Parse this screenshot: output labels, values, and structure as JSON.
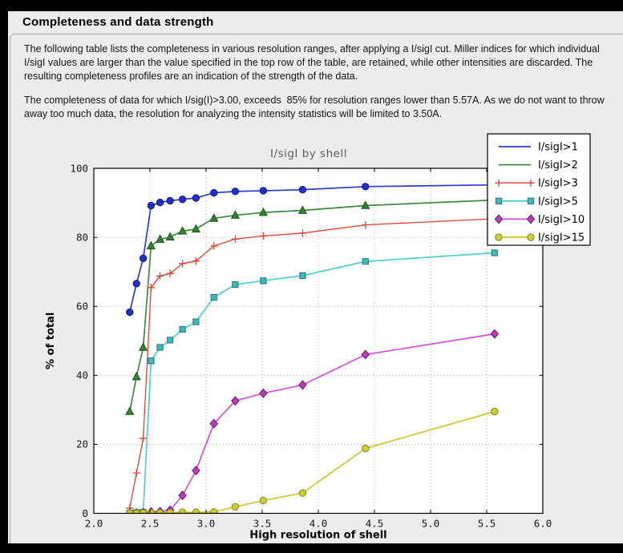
{
  "page": {
    "title": "Completeness and data strength",
    "paragraph1": "The following table lists the completeness in various resolution ranges, after applying a I/sigI cut. Miller indices for which individual I/sigI values are larger than the value specified in the top row of the table, are retained, while other intensities are discarded. The resulting completeness profiles are an indication of the strength of the data.",
    "paragraph2": "The completeness of data for which I/sig(I)>3.00, exceeds  85% for resolution ranges lower than 5.57A. As we do not want to throw away too much data, the resolution for analyzing the intensity statistics will be limited to 3.50A."
  },
  "chart_data": {
    "type": "line",
    "title": "I/sigI by shell",
    "xlabel": "High resolution of shell",
    "ylabel": "% of total",
    "xlim": [
      2.0,
      6.0
    ],
    "ylim": [
      0,
      100
    ],
    "x_tick_labels": [
      "2.0",
      "2.5",
      "3.0",
      "3.5",
      "4.0",
      "4.5",
      "5.0",
      "5.5",
      "6.0"
    ],
    "x_tick_values": [
      2.0,
      2.5,
      3.0,
      3.5,
      4.0,
      4.5,
      5.0,
      5.5,
      6.0
    ],
    "y_tick_labels": [
      "0",
      "20",
      "40",
      "60",
      "80",
      "100"
    ],
    "y_tick_values": [
      0,
      20,
      40,
      60,
      80,
      100
    ],
    "grid": true,
    "legend_position": "top-right",
    "x": [
      2.32,
      2.38,
      2.44,
      2.51,
      2.59,
      2.68,
      2.79,
      2.91,
      3.07,
      3.26,
      3.51,
      3.86,
      4.42,
      5.57
    ],
    "series": [
      {
        "name": "I/sigI>1",
        "color": "#2d3ad0",
        "marker_fill": "#2330c8",
        "edge": "#111c8e",
        "marker": "circle",
        "legend_marker": false,
        "values": [
          58.3,
          66.6,
          73.9,
          89.2,
          90.1,
          90.6,
          91.0,
          91.4,
          92.9,
          93.3,
          93.5,
          93.8,
          94.7,
          95.2
        ]
      },
      {
        "name": "I/sigI>2",
        "color": "#3d8c3d",
        "marker_fill": "#338033",
        "edge": "#205720",
        "marker": "triangle",
        "legend_marker": false,
        "values": [
          29.5,
          39.6,
          48.1,
          77.5,
          79.4,
          80.1,
          81.8,
          82.4,
          85.5,
          86.4,
          87.2,
          87.8,
          89.2,
          90.8
        ]
      },
      {
        "name": "I/sigI>3",
        "color": "#e2402f",
        "marker_fill": "#e2402f",
        "edge": "#e2402f",
        "marker": "plus",
        "legend_marker": true,
        "values": [
          1.5,
          11.7,
          21.7,
          65.4,
          68.8,
          69.5,
          72.4,
          73.1,
          77.5,
          79.5,
          80.4,
          81.2,
          83.6,
          85.4
        ]
      },
      {
        "name": "I/sigI>5",
        "color": "#4ecfcf",
        "marker_fill": "#3fb9b9",
        "edge": "#23747c",
        "marker": "square",
        "legend_marker": true,
        "values": [
          0.1,
          0.2,
          0.3,
          44.2,
          48.1,
          50.2,
          53.3,
          55.5,
          62.6,
          66.3,
          67.4,
          68.9,
          73.0,
          75.5
        ]
      },
      {
        "name": "I/sigI>10",
        "color": "#d44fd4",
        "marker_fill": "#bc3abc",
        "edge": "#6d176d",
        "marker": "diamond",
        "legend_marker": true,
        "values": [
          0.0,
          0.1,
          0.2,
          0.4,
          0.5,
          0.9,
          5.2,
          12.4,
          26.0,
          32.6,
          34.8,
          37.2,
          46.0,
          52.0
        ]
      },
      {
        "name": "I/sigI>15",
        "color": "#c9c930",
        "marker_fill": "#cdcd3a",
        "edge": "#88880f",
        "marker": "circle",
        "legend_marker": true,
        "values": [
          0.0,
          0.0,
          0.1,
          0.1,
          0.1,
          0.2,
          0.3,
          0.3,
          0.4,
          1.9,
          3.7,
          5.9,
          18.8,
          29.5
        ]
      }
    ],
    "colors": {
      "grid": "#bfbfbf",
      "plot_bg": "#ffffff",
      "figure_bg": "#ececec",
      "axis": "#000000",
      "title_text": "#5c5c5c"
    }
  }
}
